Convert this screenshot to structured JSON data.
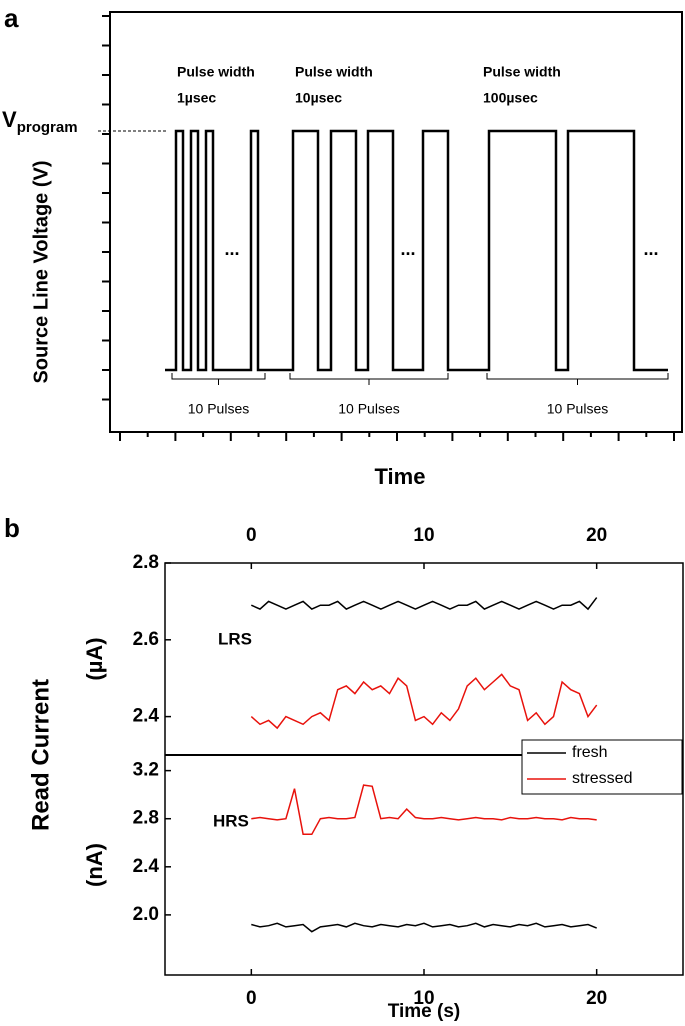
{
  "chart_data": [
    {
      "type": "pulse",
      "panel_label": "a",
      "ylabel": "Source Line Voltage (V)",
      "xlabel": "Time",
      "level_label": {
        "text": "V",
        "subscript": "program"
      },
      "groups": [
        {
          "label": [
            "Pulse width",
            "1µsec"
          ],
          "ellipsis": "...",
          "count_label": "10 Pulses"
        },
        {
          "label": [
            "Pulse width",
            "10µsec"
          ],
          "ellipsis": "...",
          "count_label": "10 Pulses"
        },
        {
          "label": [
            "Pulse width",
            "100µsec"
          ],
          "ellipsis": "...",
          "count_label": "10 Pulses"
        }
      ]
    },
    {
      "type": "line",
      "panel_label": "b",
      "figure_ylabel": "Read Current",
      "ylabel": "(µA)",
      "annotation": "LRS",
      "x_axis_position": "top",
      "xlim": [
        -5,
        25
      ],
      "xticks": [
        0,
        10,
        20
      ],
      "ylim": [
        2.3,
        2.8
      ],
      "yticks": [
        2.4,
        2.6,
        2.8
      ],
      "x": [
        0,
        0.5,
        1,
        1.5,
        2,
        2.5,
        3,
        3.5,
        4,
        4.5,
        5,
        5.5,
        6,
        6.5,
        7,
        7.5,
        8,
        8.5,
        9,
        9.5,
        10,
        10.5,
        11,
        11.5,
        12,
        12.5,
        13,
        13.5,
        14,
        14.5,
        15,
        15.5,
        16,
        16.5,
        17,
        17.5,
        18,
        18.5,
        19,
        19.5,
        20
      ],
      "series": [
        {
          "color": "#000000",
          "values": [
            2.69,
            2.68,
            2.7,
            2.69,
            2.68,
            2.69,
            2.7,
            2.68,
            2.69,
            2.69,
            2.7,
            2.68,
            2.69,
            2.7,
            2.69,
            2.68,
            2.69,
            2.7,
            2.69,
            2.68,
            2.69,
            2.7,
            2.69,
            2.68,
            2.69,
            2.69,
            2.7,
            2.68,
            2.69,
            2.7,
            2.69,
            2.68,
            2.69,
            2.7,
            2.69,
            2.68,
            2.69,
            2.69,
            2.7,
            2.68,
            2.71
          ]
        },
        {
          "color": "#e8120c",
          "values": [
            2.4,
            2.38,
            2.39,
            2.37,
            2.4,
            2.39,
            2.38,
            2.4,
            2.41,
            2.39,
            2.47,
            2.48,
            2.46,
            2.49,
            2.47,
            2.48,
            2.46,
            2.5,
            2.48,
            2.39,
            2.4,
            2.38,
            2.41,
            2.39,
            2.42,
            2.48,
            2.5,
            2.47,
            2.49,
            2.51,
            2.48,
            2.47,
            2.39,
            2.41,
            2.38,
            2.4,
            2.49,
            2.47,
            2.46,
            2.4,
            2.43
          ]
        }
      ]
    },
    {
      "type": "line",
      "ylabel": "(nA)",
      "annotation": "HRS",
      "xlabel": "Time (s)",
      "x_axis_position": "bottom",
      "legend": "upper right",
      "xlim": [
        -5,
        25
      ],
      "xticks": [
        0,
        10,
        20
      ],
      "ylim": [
        1.5,
        3.33
      ],
      "yticks": [
        {
          "value": 2,
          "label": "2.0"
        },
        2.4,
        2.8,
        3.2
      ],
      "x": [
        0,
        0.5,
        1,
        1.5,
        2,
        2.5,
        3,
        3.5,
        4,
        4.5,
        5,
        5.5,
        6,
        6.5,
        7,
        7.5,
        8,
        8.5,
        9,
        9.5,
        10,
        10.5,
        11,
        11.5,
        12,
        12.5,
        13,
        13.5,
        14,
        14.5,
        15,
        15.5,
        16,
        16.5,
        17,
        17.5,
        18,
        18.5,
        19,
        19.5,
        20
      ],
      "series": [
        {
          "name": "fresh",
          "color": "#000000",
          "values": [
            1.92,
            1.9,
            1.91,
            1.93,
            1.9,
            1.91,
            1.92,
            1.86,
            1.9,
            1.91,
            1.92,
            1.9,
            1.93,
            1.91,
            1.9,
            1.92,
            1.91,
            1.9,
            1.92,
            1.91,
            1.93,
            1.9,
            1.91,
            1.92,
            1.9,
            1.91,
            1.93,
            1.9,
            1.92,
            1.91,
            1.9,
            1.92,
            1.91,
            1.93,
            1.9,
            1.91,
            1.92,
            1.9,
            1.91,
            1.92,
            1.89
          ]
        },
        {
          "name": "stressed",
          "color": "#e8120c",
          "values": [
            2.8,
            2.81,
            2.8,
            2.79,
            2.8,
            3.05,
            2.67,
            2.67,
            2.8,
            2.81,
            2.8,
            2.8,
            2.81,
            3.08,
            3.07,
            2.8,
            2.81,
            2.8,
            2.88,
            2.81,
            2.8,
            2.8,
            2.81,
            2.8,
            2.79,
            2.8,
            2.81,
            2.8,
            2.8,
            2.79,
            2.81,
            2.8,
            2.8,
            2.81,
            2.8,
            2.8,
            2.79,
            2.81,
            2.8,
            2.8,
            2.79
          ]
        }
      ]
    }
  ]
}
